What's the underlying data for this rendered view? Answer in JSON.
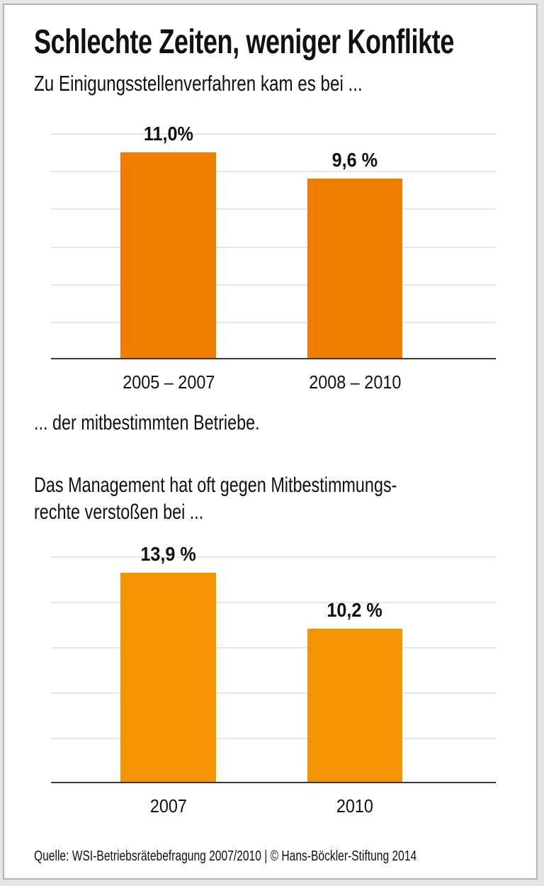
{
  "header": {
    "title": "Schlechte Zeiten, weniger Konflikte",
    "subtitle": "Zu Einigungsstellenverfahren kam es bei ..."
  },
  "captions": {
    "after_chart1": "... der mitbestimmten Betriebe.",
    "before_chart2_line1": "Das Management hat oft gegen Mitbestimmungs-",
    "before_chart2_line2": "rechte verstoßen bei ..."
  },
  "source": "Quelle: WSI-Betriebsrätebefragung 2007/2010 | © Hans-Böckler-Stiftung 2014",
  "colors": {
    "chart1_bar": "#F07D00",
    "chart2_bar": "#F39400",
    "gridline": "#E7E7E7",
    "axis": "#3A3A3A",
    "text": "#111111",
    "card_border": "#B3B3B3",
    "page_background": "#E5E5E5"
  },
  "chart_data": [
    {
      "type": "bar",
      "title": "Zu Einigungsstellenverfahren kam es bei ... der mitbestimmten Betriebe.",
      "categories": [
        "2005 – 2007",
        "2008 – 2010"
      ],
      "values": [
        11.0,
        9.6
      ],
      "value_labels": [
        "11,0%",
        "9,6 %"
      ],
      "unit": "%",
      "ylim": [
        0,
        12
      ],
      "gridline_step": 2,
      "grid": true,
      "legend": false,
      "bar_color": "#F07D00"
    },
    {
      "type": "bar",
      "title": "Das Management hat oft gegen Mitbestimmungsrechte verstoßen bei ...",
      "categories": [
        "2007",
        "2010"
      ],
      "values": [
        13.9,
        10.2
      ],
      "value_labels": [
        "13,9 %",
        "10,2 %"
      ],
      "unit": "%",
      "ylim": [
        0,
        15
      ],
      "gridline_step": 3,
      "grid": true,
      "legend": false,
      "bar_color": "#F39400"
    }
  ]
}
